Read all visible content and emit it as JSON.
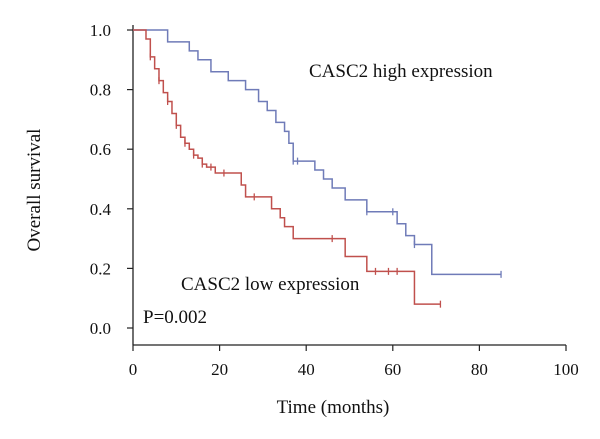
{
  "chart_data": {
    "type": "line",
    "step": true,
    "xlabel": "Time (months)",
    "ylabel": "Overall survival",
    "xlim": [
      0,
      100
    ],
    "ylim": [
      0,
      1.0
    ],
    "x_ticks": [
      0,
      20,
      40,
      60,
      80,
      100
    ],
    "y_ticks": [
      0.0,
      0.2,
      0.4,
      0.6,
      0.8,
      1.0
    ],
    "x_tick_labels": [
      "0",
      "20",
      "40",
      "60",
      "80",
      "100"
    ],
    "y_tick_labels": [
      "0.0",
      "0.2",
      "0.4",
      "0.6",
      "0.8",
      "1.0"
    ],
    "grid": false,
    "annotations": [
      "CASC2 high expression",
      "CASC2 low expression",
      "P=0.002"
    ],
    "series": [
      {
        "name": "CASC2 high expression",
        "color": "#6f7bb8",
        "steps": [
          [
            0,
            1.0
          ],
          [
            8,
            0.96
          ],
          [
            13,
            0.93
          ],
          [
            15,
            0.9
          ],
          [
            18,
            0.86
          ],
          [
            22,
            0.83
          ],
          [
            26,
            0.8
          ],
          [
            29,
            0.76
          ],
          [
            31,
            0.73
          ],
          [
            33,
            0.69
          ],
          [
            35,
            0.66
          ],
          [
            36,
            0.62
          ],
          [
            37,
            0.56
          ],
          [
            42,
            0.53
          ],
          [
            44,
            0.5
          ],
          [
            46,
            0.47
          ],
          [
            49,
            0.43
          ],
          [
            54,
            0.39
          ],
          [
            61,
            0.35
          ],
          [
            63,
            0.31
          ],
          [
            65,
            0.28
          ],
          [
            69,
            0.18
          ],
          [
            85,
            0.18
          ]
        ],
        "censored": [
          [
            37,
            0.56
          ],
          [
            38,
            0.56
          ],
          [
            54,
            0.39
          ],
          [
            60,
            0.39
          ],
          [
            65,
            0.28
          ],
          [
            85,
            0.18
          ]
        ]
      },
      {
        "name": "CASC2 low expression",
        "color": "#c0504d",
        "steps": [
          [
            0,
            1.0
          ],
          [
            3,
            0.97
          ],
          [
            4,
            0.91
          ],
          [
            5,
            0.87
          ],
          [
            6,
            0.83
          ],
          [
            7,
            0.79
          ],
          [
            8,
            0.76
          ],
          [
            9,
            0.72
          ],
          [
            10,
            0.68
          ],
          [
            11,
            0.64
          ],
          [
            12,
            0.62
          ],
          [
            13,
            0.6
          ],
          [
            14,
            0.58
          ],
          [
            15,
            0.57
          ],
          [
            16,
            0.55
          ],
          [
            17,
            0.54
          ],
          [
            19,
            0.52
          ],
          [
            25,
            0.48
          ],
          [
            26,
            0.44
          ],
          [
            32,
            0.4
          ],
          [
            34,
            0.37
          ],
          [
            35,
            0.34
          ],
          [
            37,
            0.3
          ],
          [
            49,
            0.24
          ],
          [
            54,
            0.19
          ],
          [
            62,
            0.19
          ],
          [
            65,
            0.08
          ],
          [
            71,
            0.08
          ]
        ],
        "censored": [
          [
            4,
            0.91
          ],
          [
            6,
            0.83
          ],
          [
            8,
            0.76
          ],
          [
            10,
            0.68
          ],
          [
            12,
            0.62
          ],
          [
            14,
            0.58
          ],
          [
            16,
            0.55
          ],
          [
            18,
            0.54
          ],
          [
            21,
            0.52
          ],
          [
            28,
            0.44
          ],
          [
            46,
            0.3
          ],
          [
            56,
            0.19
          ],
          [
            59,
            0.19
          ],
          [
            61,
            0.19
          ],
          [
            71,
            0.08
          ]
        ]
      }
    ]
  }
}
